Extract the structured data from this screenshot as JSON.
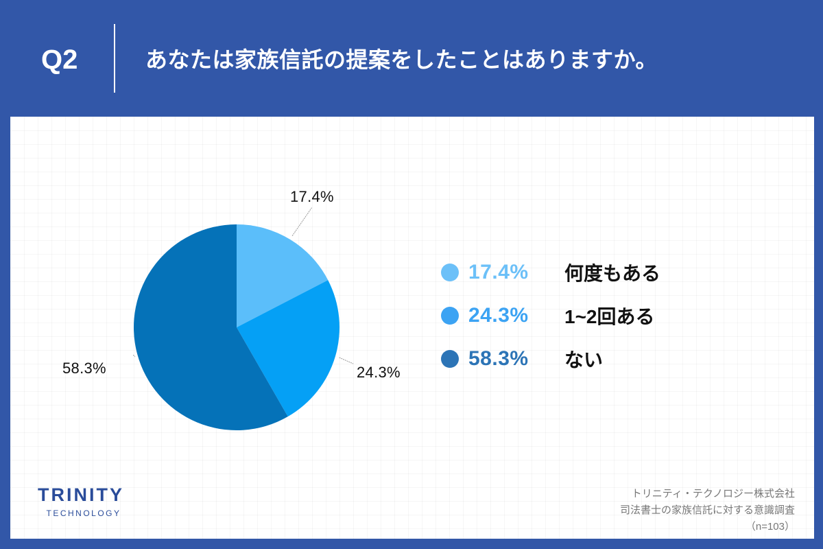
{
  "header": {
    "question_number": "Q2",
    "question_text": "あなたは家族信託の提案をしたことはありますか。"
  },
  "chart_data": {
    "type": "pie",
    "title": "あなたは家族信託の提案をしたことはありますか。",
    "categories": [
      "何度もある",
      "1~2回ある",
      "ない"
    ],
    "values": [
      17.4,
      24.3,
      58.3
    ],
    "labels": [
      "17.4%",
      "24.3%",
      "58.3%"
    ],
    "colors": [
      "#5BBEFA",
      "#05A0F5",
      "#0572B8"
    ],
    "start_angle": "12 o'clock, clockwise",
    "legend_position": "right",
    "sample_size": "n=103"
  },
  "legend": {
    "items": [
      {
        "pct": "17.4%",
        "label": "何度もある",
        "dot_color": "#6CC0F8",
        "pct_color": "#6CC0F8"
      },
      {
        "pct": "24.3%",
        "label": "1~2回ある",
        "dot_color": "#3CA3F3",
        "pct_color": "#3CA3F3"
      },
      {
        "pct": "58.3%",
        "label": "ない",
        "dot_color": "#2C74B6",
        "pct_color": "#2C74B6"
      }
    ]
  },
  "logo": {
    "main": "TRINITY",
    "sub": "TECHNOLOGY"
  },
  "source": {
    "company": "トリニティ・テクノロジー株式会社",
    "survey": "司法書士の家族信託に対する意識調査",
    "sample": "（n=103）"
  },
  "colors": {
    "background": "#3257A8",
    "panel": "#FFFFFF",
    "brand": "#2A4C9A"
  }
}
